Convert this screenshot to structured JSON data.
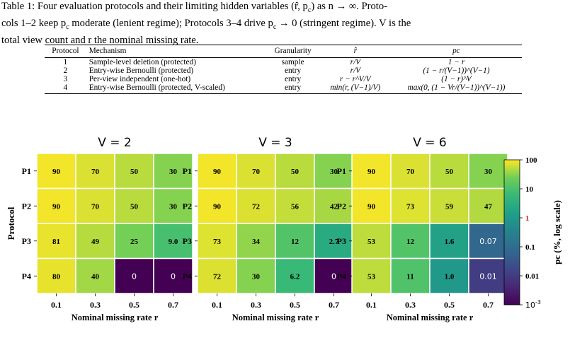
{
  "caption": {
    "line1": "Table 1: Four evaluation protocols and their limiting hidden variables (r̂, p",
    "line1_sub": "c",
    "line1_end": ") as n → ∞. Proto-",
    "line2": "cols 1–2 keep p",
    "line2_sub": "c",
    "line2_mid": " moderate (lenient regime); Protocols 3–4 drive p",
    "line2_sub2": "c",
    "line2_end": " → 0 (stringent regime). V is the",
    "line3": "total view count and r the nominal missing rate."
  },
  "table": {
    "headers": [
      "Protocol",
      "Mechanism",
      "Granularity",
      "r̂",
      "pc"
    ],
    "rows": [
      {
        "protocol": "1",
        "mechanism": "Sample-level deletion (protected)",
        "granularity": "sample",
        "rhat": "r/V",
        "pc": "1 − r"
      },
      {
        "protocol": "2",
        "mechanism": "Entry-wise Bernoulli (protected)",
        "granularity": "entry",
        "rhat": "r/V",
        "pc": "(1 − r/(V−1))^(V−1)"
      },
      {
        "protocol": "3",
        "mechanism": "Per-view independent (one-hot)",
        "granularity": "entry",
        "rhat": "r − r^V/V",
        "pc": "(1 − r)^V"
      },
      {
        "protocol": "4",
        "mechanism": "Entry-wise Bernoulli (protected, V-scaled)",
        "granularity": "entry",
        "rhat": "min(r, (V−1)/V)",
        "pc": "max(0, (1 − Vr/(V−1))^(V−1))"
      }
    ]
  },
  "chart_data": {
    "type": "heatmap",
    "panels": [
      {
        "title": "V = 2",
        "values": [
          [
            90,
            70,
            50,
            30
          ],
          [
            90,
            70,
            50,
            30
          ],
          [
            81,
            49,
            25,
            9.0
          ],
          [
            80,
            40,
            0,
            0
          ]
        ],
        "labels": [
          [
            "90",
            "70",
            "50",
            "30"
          ],
          [
            "90",
            "70",
            "50",
            "30"
          ],
          [
            "81",
            "49",
            "25",
            "9.0"
          ],
          [
            "80",
            "40",
            "0",
            "0"
          ]
        ]
      },
      {
        "title": "V = 3",
        "values": [
          [
            90,
            70,
            50,
            30
          ],
          [
            90,
            72,
            56,
            42
          ],
          [
            73,
            34,
            12,
            2.7
          ],
          [
            72,
            30,
            6.2,
            0
          ]
        ],
        "labels": [
          [
            "90",
            "70",
            "50",
            "30"
          ],
          [
            "90",
            "72",
            "56",
            "42"
          ],
          [
            "73",
            "34",
            "12",
            "2.7"
          ],
          [
            "72",
            "30",
            "6.2",
            "0"
          ]
        ]
      },
      {
        "title": "V = 6",
        "values": [
          [
            90,
            70,
            50,
            30
          ],
          [
            90,
            73,
            59,
            47
          ],
          [
            53,
            12,
            1.6,
            0.07
          ],
          [
            53,
            11,
            1.0,
            0.01
          ]
        ],
        "labels": [
          [
            "90",
            "70",
            "50",
            "30"
          ],
          [
            "90",
            "73",
            "59",
            "47"
          ],
          [
            "53",
            "12",
            "1.6",
            "0.07"
          ],
          [
            "53",
            "11",
            "1.0",
            "0.01"
          ]
        ]
      }
    ],
    "rows": [
      "P1",
      "P2",
      "P3",
      "P4"
    ],
    "columns": [
      "0.1",
      "0.3",
      "0.5",
      "0.7"
    ],
    "xlabel": "Nominal missing rate r",
    "ylabel": "Protocol",
    "colorbar": {
      "label": "pc (%, log scale)",
      "ticks": [
        "100",
        "10",
        "1",
        "0.1",
        "0.01",
        "10^-3"
      ],
      "tick_values": [
        100,
        10,
        1,
        0.1,
        0.01,
        0.001
      ],
      "highlight_tick": "1",
      "highlight_color": "#d62728",
      "range": [
        0.001,
        100
      ],
      "scale": "log",
      "colormap": "viridis"
    }
  }
}
